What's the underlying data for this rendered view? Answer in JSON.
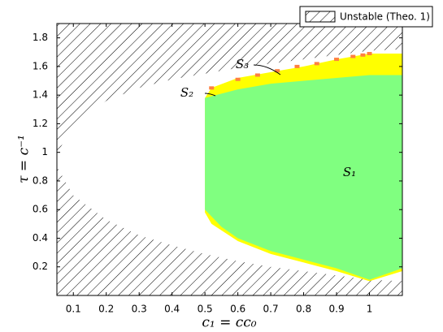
{
  "chart_data": {
    "type": "region",
    "xlabel": "c₁ = cc₀",
    "ylabel": "τ = c⁻¹",
    "xlim": [
      0.05,
      1.1
    ],
    "ylim": [
      0,
      1.9
    ],
    "xticks": [
      0.1,
      0.2,
      0.3,
      0.4,
      0.5,
      0.6,
      0.7,
      0.8,
      0.9,
      1
    ],
    "yticks": [
      0.2,
      0.4,
      0.6,
      0.8,
      1,
      1.2,
      1.4,
      1.6,
      1.8
    ],
    "legend": "upper right",
    "series": [
      {
        "name": "Unstable (Theo. 1)",
        "fill": "hatch",
        "color": "#000000",
        "x": [
          0.05,
          0.1,
          0.2,
          0.3,
          0.4,
          0.5,
          0.6,
          0.7,
          0.8,
          0.9,
          1.0,
          1.1
        ],
        "stable_top": [
          0.99,
          1.19,
          1.36,
          1.45,
          1.51,
          1.55,
          1.59,
          1.62,
          1.65,
          1.68,
          1.71,
          1.72
        ],
        "stable_bottom": [
          0.9,
          0.7,
          0.53,
          0.42,
          0.35,
          0.29,
          0.24,
          0.2,
          0.17,
          0.14,
          0.11,
          0.1
        ]
      },
      {
        "name": "S₂",
        "fill": "band",
        "color": "#ffff00",
        "x": [
          0.5,
          0.52,
          0.6,
          0.7,
          0.8,
          0.9,
          1.0,
          1.1
        ],
        "upper": [
          1.38,
          1.45,
          1.52,
          1.56,
          1.6,
          1.65,
          1.69,
          1.69
        ],
        "lower": [
          0.58,
          0.5,
          0.38,
          0.29,
          0.23,
          0.17,
          0.1,
          0.17
        ]
      },
      {
        "name": "S₁",
        "fill": "band",
        "color": "#80ff80",
        "x": [
          0.5,
          0.55,
          0.6,
          0.7,
          0.8,
          0.9,
          1.0,
          1.1
        ],
        "upper": [
          1.38,
          1.41,
          1.44,
          1.48,
          1.5,
          1.52,
          1.54,
          1.54
        ],
        "lower": [
          0.6,
          0.48,
          0.4,
          0.31,
          0.25,
          0.19,
          0.11,
          0.19
        ]
      },
      {
        "name": "S₃",
        "fill": "points",
        "color": "#ff8040",
        "x": [
          0.52,
          0.6,
          0.66,
          0.72,
          0.78,
          0.84,
          0.9,
          0.95,
          0.98,
          1.0
        ],
        "y": [
          1.45,
          1.51,
          1.54,
          1.57,
          1.6,
          1.62,
          1.65,
          1.67,
          1.68,
          1.69
        ]
      }
    ]
  }
}
